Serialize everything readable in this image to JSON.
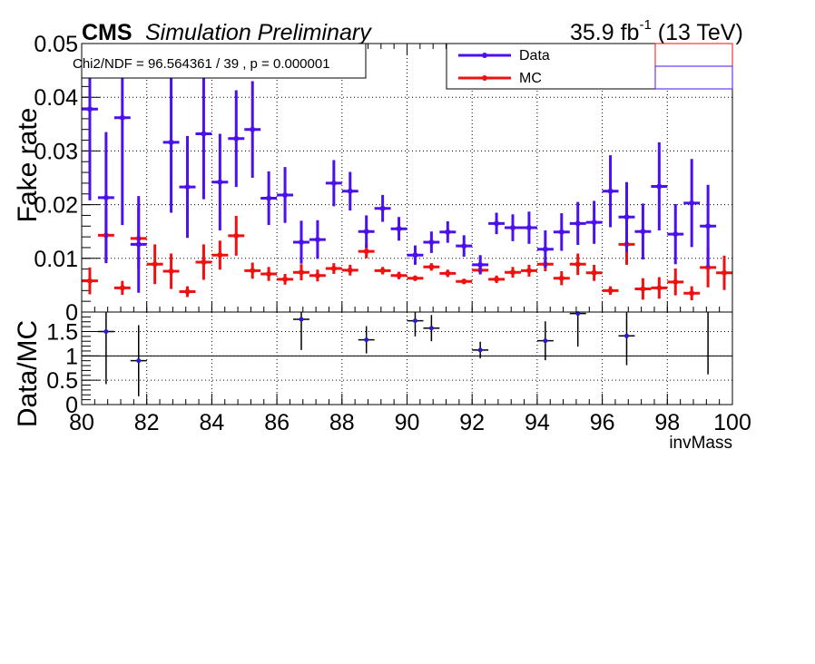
{
  "header": {
    "experiment": "CMS",
    "status": "Simulation Preliminary",
    "lumi_value": "35.9 fb",
    "lumi_exponent": "-1",
    "energy": "(13 TeV)"
  },
  "stat_box": {
    "text": "Chi2/NDF = 96.564361 / 39 , p = 0.000001"
  },
  "colors": {
    "data": "#4b10ee",
    "mc": "#f01010",
    "ratio": "#000000",
    "ratio_point": "#2a18d8"
  },
  "chart_data": [
    {
      "type": "scatter",
      "panel": "main",
      "ylabel": "Fake rate",
      "xlim": [
        80,
        100
      ],
      "ylim": [
        0,
        0.05
      ],
      "y_ticks": [
        "0",
        "0.01",
        "0.02",
        "0.03",
        "0.04",
        "0.05"
      ],
      "grid": true,
      "legend_position": "top-right",
      "x": [
        80.25,
        80.75,
        81.25,
        81.75,
        82.25,
        82.75,
        83.25,
        83.75,
        84.25,
        84.75,
        85.25,
        85.75,
        86.25,
        86.75,
        87.25,
        87.75,
        88.25,
        88.75,
        89.25,
        89.75,
        90.25,
        90.75,
        91.25,
        91.75,
        92.25,
        92.75,
        93.25,
        93.75,
        94.25,
        94.75,
        95.25,
        95.75,
        96.25,
        96.75,
        97.25,
        97.75,
        98.25,
        98.75,
        99.25,
        99.75
      ],
      "x_error": 0.25,
      "series": [
        {
          "name": "Data",
          "values": [
            0.0378,
            0.0213,
            0.0362,
            0.0126,
            null,
            0.0316,
            0.0233,
            0.0332,
            0.0242,
            0.0323,
            0.034,
            0.0212,
            0.0218,
            0.013,
            0.0135,
            0.024,
            0.0225,
            0.015,
            0.0193,
            0.0155,
            0.0106,
            0.013,
            0.0149,
            0.0123,
            0.0088,
            0.0165,
            0.0157,
            0.0157,
            0.0117,
            0.0149,
            0.0165,
            0.0167,
            0.0225,
            0.0177,
            0.015,
            0.0234,
            0.0145,
            0.0203,
            0.016,
            null
          ],
          "errors": [
            0.017,
            0.0122,
            0.02,
            0.009,
            null,
            0.0131,
            0.0095,
            0.0122,
            0.009,
            0.009,
            0.009,
            0.005,
            0.0052,
            0.004,
            0.0036,
            0.0043,
            0.0036,
            0.003,
            0.0025,
            0.0022,
            0.0018,
            0.002,
            0.002,
            0.002,
            0.0018,
            0.002,
            0.0025,
            0.003,
            0.0035,
            0.0035,
            0.004,
            0.004,
            0.0067,
            0.0065,
            0.0052,
            0.0082,
            0.0056,
            0.0082,
            0.0077,
            null
          ]
        },
        {
          "name": "MC",
          "values": [
            0.0058,
            0.0143,
            0.0045,
            0.0137,
            0.0089,
            0.0076,
            0.0038,
            0.0093,
            0.0106,
            0.0142,
            0.0077,
            0.0071,
            0.0061,
            0.0074,
            0.0068,
            0.0081,
            0.0078,
            0.0113,
            0.0077,
            0.0068,
            0.0063,
            0.0084,
            0.0072,
            0.0057,
            0.0078,
            0.0061,
            0.0074,
            0.0077,
            0.0089,
            0.0063,
            0.0089,
            0.0073,
            0.004,
            0.0126,
            0.0043,
            0.0045,
            0.0056,
            0.0035,
            0.0083,
            0.0073
          ],
          "errors": [
            0.0025,
            0.005,
            0.0013,
            0.0057,
            0.0037,
            0.0033,
            0.001,
            0.0033,
            0.0027,
            0.0037,
            0.0015,
            0.0013,
            0.001,
            0.0015,
            0.0011,
            0.001,
            0.001,
            0.0013,
            0.0007,
            0.0007,
            0.0005,
            0.0007,
            0.0007,
            0.0005,
            0.0007,
            0.0007,
            0.001,
            0.0011,
            0.0013,
            0.0013,
            0.002,
            0.0015,
            0.0008,
            0.0038,
            0.002,
            0.002,
            0.0025,
            0.0013,
            0.0037,
            0.0032
          ]
        }
      ]
    },
    {
      "type": "scatter",
      "panel": "ratio",
      "xlabel": "invMass",
      "ylabel": "Data/MC",
      "xlim": [
        80,
        100
      ],
      "ylim": [
        0,
        1.9
      ],
      "x_ticks": [
        "80",
        "82",
        "84",
        "86",
        "88",
        "90",
        "92",
        "94",
        "96",
        "98",
        "100"
      ],
      "y_ticks": [
        "0",
        "0.5",
        "1",
        "1.5"
      ],
      "reference_lines": [
        1.0
      ],
      "grid": true,
      "x": [
        80.75,
        81.75,
        86.75,
        88.75,
        90.25,
        90.75,
        92.25,
        94.25,
        95.25,
        96.75,
        99.25
      ],
      "x_error": 0.25,
      "values": [
        1.5,
        0.9,
        1.75,
        1.33,
        1.72,
        1.57,
        1.12,
        1.31,
        1.87,
        1.41,
        1.97
      ],
      "errors": [
        1.08,
        0.73,
        0.63,
        0.28,
        0.32,
        0.27,
        0.17,
        0.4,
        0.68,
        0.6,
        1.35
      ]
    }
  ]
}
